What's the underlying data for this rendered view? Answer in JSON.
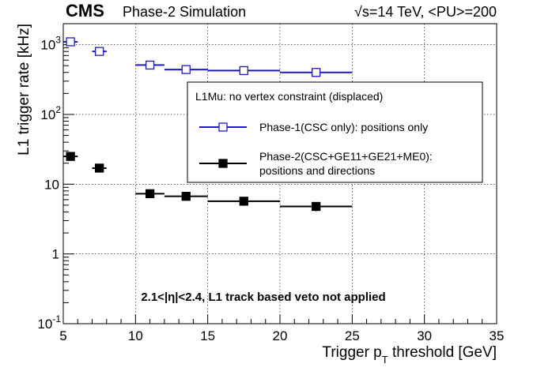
{
  "header": {
    "experiment": "CMS",
    "label": "Phase-2 Simulation",
    "energy": "√s=14 TeV, <PU>=200"
  },
  "annotation": "2.1<|η|<2.4, L1 track based veto not applied",
  "chart_data": {
    "type": "scatter",
    "xlabel": "Trigger p_T threshold [GeV]",
    "ylabel": "L1 trigger rate [kHz]",
    "xlim": [
      5,
      35
    ],
    "ylim": [
      0.1,
      2000
    ],
    "y_scale": "log",
    "grid": true,
    "x_ticks": [
      5,
      10,
      15,
      20,
      25,
      30,
      35
    ],
    "y_ticks": [
      "10^{-1}",
      "1",
      "10",
      "10^{2}",
      "10^{3}"
    ],
    "legend": {
      "title": "L1Mu: no vertex constraint (displaced)",
      "placement": "center-right"
    },
    "series": [
      {
        "name": "Phase-1(CSC only): positions only",
        "color": "#1a1acc",
        "marker": "open-square",
        "x": [
          5.5,
          7.5,
          11,
          13.5,
          17.5,
          22.5
        ],
        "x_lo": [
          5,
          7,
          10,
          12,
          15,
          20
        ],
        "x_hi": [
          6,
          8,
          12,
          15,
          20,
          25
        ],
        "y": [
          1100,
          800,
          510,
          440,
          425,
          400
        ]
      },
      {
        "name": "Phase-2(CSC+GE11+GE21+ME0): positions and directions",
        "color": "#000000",
        "marker": "filled-square",
        "x": [
          5.5,
          7.5,
          11,
          13.5,
          17.5,
          22.5
        ],
        "x_lo": [
          5,
          7,
          10,
          12,
          15,
          20
        ],
        "x_hi": [
          6,
          8,
          12,
          15,
          20,
          25
        ],
        "y": [
          25,
          17,
          7.3,
          6.7,
          5.7,
          4.8
        ],
        "y_err": [
          1.5,
          1.2,
          0.9,
          0.8,
          0.8,
          0.7
        ]
      }
    ]
  }
}
